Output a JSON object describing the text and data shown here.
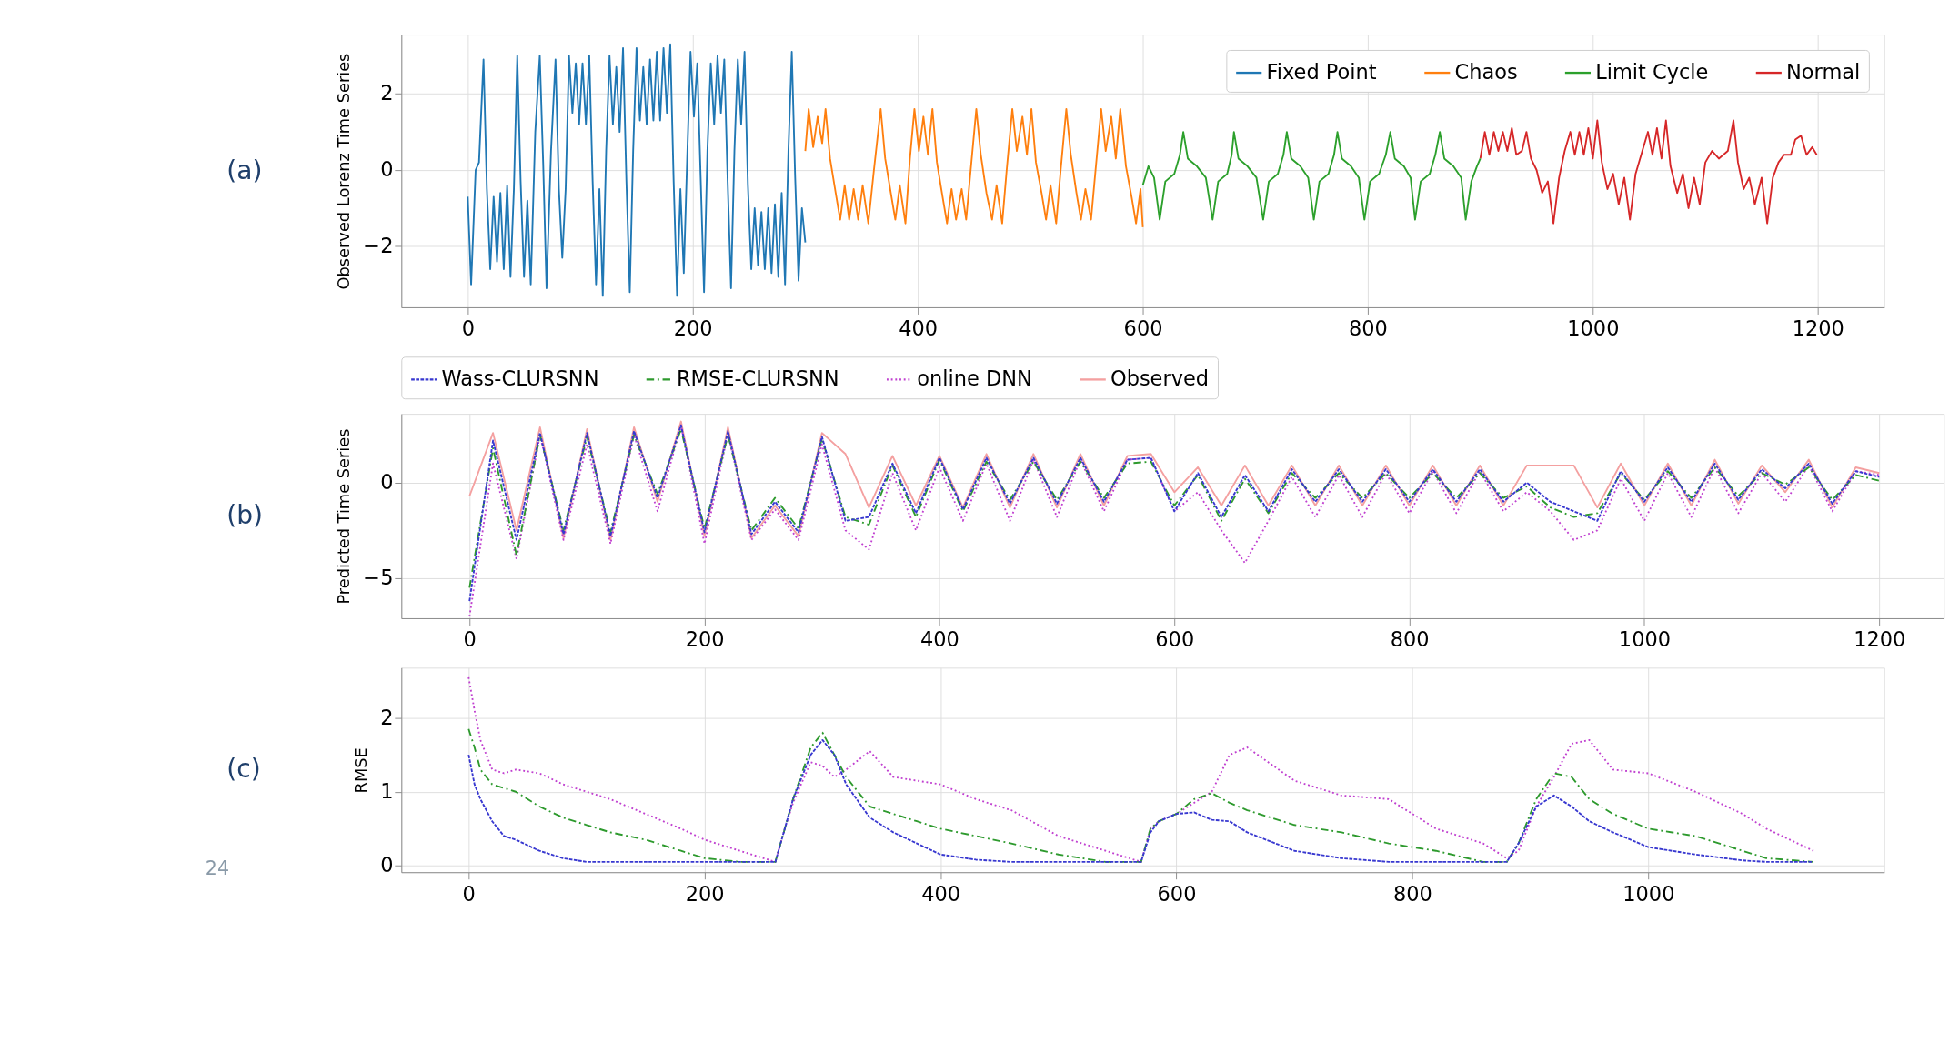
{
  "chart_data": [
    {
      "type": "line",
      "ylabel": "Observed Lorenz Time Series",
      "annotations": [
        "(a)"
      ],
      "xlim": [
        -59,
        1259
      ],
      "ylim": [
        -3.6,
        3.55
      ],
      "xticks": [
        0,
        200,
        400,
        600,
        800,
        1000,
        1200
      ],
      "yticks": [
        -2,
        0,
        2
      ],
      "grid": true,
      "legend": "top right",
      "line_style": "solid",
      "series": [
        {
          "name": "Fixed Point",
          "color": "#1f77b4",
          "x": [
            0,
            3,
            7,
            10,
            14,
            17,
            20,
            23,
            26,
            29,
            32,
            35,
            38,
            41,
            44,
            47,
            50,
            53,
            56,
            60,
            64,
            67,
            70,
            74,
            78,
            81,
            84,
            87,
            90,
            93,
            96,
            99,
            102,
            105,
            108,
            111,
            114,
            117,
            120,
            123,
            126,
            129,
            132,
            135,
            138,
            141,
            144,
            147,
            150,
            153,
            156,
            159,
            162,
            165,
            168,
            171,
            174,
            177,
            180,
            183,
            186,
            189,
            192,
            195,
            198,
            201,
            204,
            207,
            210,
            213,
            216,
            219,
            222,
            225,
            228,
            231,
            234,
            237,
            240,
            243,
            246,
            249,
            252,
            255,
            258,
            261,
            264,
            267,
            270,
            273,
            276,
            279,
            282,
            285,
            288,
            291,
            294,
            297,
            300
          ],
          "values": [
            -0.7,
            -3.0,
            0.0,
            0.2,
            2.9,
            -0.5,
            -2.6,
            -0.7,
            -2.4,
            -0.6,
            -2.6,
            -0.4,
            -2.8,
            -0.5,
            3.0,
            -0.3,
            -2.8,
            -0.8,
            -3.0,
            1.0,
            3.0,
            0.2,
            -3.1,
            0.5,
            2.9,
            -0.5,
            -2.3,
            -0.5,
            3.0,
            1.5,
            2.8,
            1.2,
            2.8,
            1.2,
            3.0,
            -0.3,
            -3.0,
            -0.5,
            -3.3,
            0.5,
            3.0,
            1.2,
            2.7,
            1.0,
            3.2,
            -0.3,
            -3.2,
            0.5,
            3.2,
            1.3,
            2.7,
            1.2,
            2.9,
            1.3,
            3.1,
            1.3,
            3.2,
            1.5,
            3.3,
            -0.3,
            -3.3,
            -0.5,
            -2.7,
            0.3,
            3.1,
            1.4,
            2.8,
            -0.2,
            -3.2,
            0.5,
            2.8,
            1.2,
            3.0,
            1.5,
            2.9,
            -0.3,
            -3.1,
            0.5,
            2.9,
            1.2,
            3.1,
            -0.4,
            -2.6,
            -1.0,
            -2.5,
            -1.1,
            -2.6,
            -1.0,
            -2.7,
            -0.9,
            -2.8,
            -0.6,
            -3.0,
            0.5,
            3.1,
            -0.2,
            -2.9,
            -1.0,
            -1.9
          ]
        },
        {
          "name": "Chaos",
          "color": "#ff7f0e",
          "x": [
            300,
            303,
            307,
            311,
            315,
            318,
            322,
            327,
            331,
            335,
            339,
            343,
            347,
            351,
            356,
            361,
            367,
            371,
            376,
            380,
            384,
            389,
            393,
            397,
            401,
            405,
            409,
            413,
            417,
            422,
            426,
            430,
            434,
            439,
            443,
            447,
            452,
            456,
            461,
            466,
            470,
            475,
            479,
            484,
            488,
            493,
            497,
            501,
            505,
            510,
            514,
            518,
            523,
            527,
            532,
            536,
            541,
            545,
            549,
            554,
            558,
            563,
            567,
            572,
            576,
            580,
            585,
            590,
            594,
            598,
            600
          ],
          "values": [
            0.5,
            1.6,
            0.6,
            1.4,
            0.7,
            1.6,
            0.3,
            -0.6,
            -1.3,
            -0.4,
            -1.3,
            -0.5,
            -1.3,
            -0.4,
            -1.4,
            0.0,
            1.6,
            0.3,
            -0.6,
            -1.3,
            -0.4,
            -1.4,
            0.3,
            1.6,
            0.5,
            1.4,
            0.4,
            1.6,
            0.2,
            -0.7,
            -1.4,
            -0.5,
            -1.3,
            -0.5,
            -1.3,
            0.0,
            1.6,
            0.4,
            -0.6,
            -1.3,
            -0.4,
            -1.4,
            0.0,
            1.6,
            0.5,
            1.4,
            0.4,
            1.6,
            0.2,
            -0.6,
            -1.3,
            -0.4,
            -1.4,
            0.0,
            1.6,
            0.4,
            -0.6,
            -1.3,
            -0.5,
            -1.3,
            0.0,
            1.6,
            0.5,
            1.4,
            0.3,
            1.6,
            0.1,
            -0.7,
            -1.4,
            -0.5,
            -1.5
          ]
        },
        {
          "name": "Limit Cycle",
          "color": "#2ca02c",
          "x": [
            600,
            605,
            610,
            615,
            620,
            628,
            633,
            636,
            640,
            648,
            656,
            662,
            667,
            675,
            679,
            681,
            685,
            693,
            701,
            707,
            712,
            720,
            725,
            728,
            732,
            740,
            747,
            752,
            757,
            765,
            770,
            773,
            777,
            785,
            792,
            797,
            802,
            810,
            816,
            820,
            824,
            832,
            838,
            842,
            847,
            855,
            860,
            864,
            868,
            876,
            883,
            887,
            892,
            897,
            900
          ],
          "values": [
            -0.4,
            0.1,
            -0.2,
            -1.3,
            -0.3,
            -0.1,
            0.4,
            1.0,
            0.3,
            0.1,
            -0.2,
            -1.3,
            -0.3,
            -0.1,
            0.4,
            1.0,
            0.3,
            0.1,
            -0.2,
            -1.3,
            -0.3,
            -0.1,
            0.4,
            1.0,
            0.3,
            0.1,
            -0.2,
            -1.3,
            -0.3,
            -0.1,
            0.4,
            1.0,
            0.3,
            0.1,
            -0.2,
            -1.3,
            -0.3,
            -0.1,
            0.4,
            1.0,
            0.3,
            0.1,
            -0.2,
            -1.3,
            -0.3,
            -0.1,
            0.4,
            1.0,
            0.3,
            0.1,
            -0.2,
            -1.3,
            -0.3,
            0.1,
            0.3
          ]
        },
        {
          "name": "Normal",
          "color": "#d62728",
          "x": [
            900,
            904,
            908,
            912,
            916,
            920,
            924,
            928,
            932,
            937,
            941,
            945,
            950,
            955,
            960,
            965,
            970,
            975,
            980,
            984,
            988,
            992,
            996,
            1000,
            1004,
            1008,
            1013,
            1018,
            1023,
            1028,
            1033,
            1038,
            1044,
            1049,
            1053,
            1057,
            1061,
            1065,
            1069,
            1075,
            1080,
            1085,
            1090,
            1095,
            1100,
            1106,
            1112,
            1120,
            1125,
            1129,
            1134,
            1139,
            1144,
            1150,
            1155,
            1160,
            1165,
            1170,
            1176,
            1180,
            1185,
            1190,
            1195,
            1199
          ],
          "values": [
            0.3,
            1.0,
            0.4,
            1.0,
            0.5,
            1.0,
            0.5,
            1.1,
            0.4,
            0.5,
            1.0,
            0.3,
            0.0,
            -0.6,
            -0.3,
            -1.4,
            -0.2,
            0.5,
            1.0,
            0.4,
            1.0,
            0.4,
            1.1,
            0.3,
            1.3,
            0.2,
            -0.5,
            -0.1,
            -0.9,
            -0.2,
            -1.3,
            -0.1,
            0.5,
            1.0,
            0.4,
            1.1,
            0.3,
            1.3,
            0.1,
            -0.6,
            -0.1,
            -1.0,
            -0.2,
            -0.9,
            0.2,
            0.5,
            0.3,
            0.5,
            1.3,
            0.2,
            -0.5,
            -0.2,
            -0.9,
            -0.2,
            -1.4,
            -0.2,
            0.2,
            0.4,
            0.4,
            0.8,
            0.9,
            0.4,
            0.6,
            0.4
          ]
        }
      ]
    },
    {
      "type": "line",
      "ylabel": "Predicted Time Series",
      "annotations": [
        "(b)"
      ],
      "xlim": [
        -58,
        1255
      ],
      "ylim": [
        -7.1,
        3.6
      ],
      "xticks": [
        0,
        200,
        400,
        600,
        800,
        1000,
        1200
      ],
      "yticks": [
        -5,
        0
      ],
      "grid": true,
      "legend": "top",
      "x": [
        0,
        20,
        40,
        60,
        80,
        100,
        120,
        140,
        160,
        180,
        200,
        220,
        240,
        260,
        280,
        300,
        320,
        340,
        360,
        380,
        400,
        420,
        440,
        460,
        480,
        500,
        520,
        540,
        560,
        580,
        600,
        620,
        640,
        660,
        680,
        700,
        720,
        740,
        760,
        780,
        800,
        820,
        840,
        860,
        880,
        900,
        920,
        940,
        960,
        980,
        1000,
        1020,
        1040,
        1060,
        1080,
        1100,
        1120,
        1140,
        1160,
        1180,
        1200
      ],
      "series": [
        {
          "name": "Wass-CLURSNN",
          "color": "#3838d0",
          "line_style": "dashed",
          "values": [
            -6.2,
            2.2,
            -3.0,
            2.6,
            -2.7,
            2.6,
            -2.8,
            2.7,
            -0.8,
            3.0,
            -2.6,
            2.7,
            -2.7,
            -1.0,
            -2.6,
            2.4,
            -2.0,
            -1.8,
            1.0,
            -1.6,
            1.3,
            -1.4,
            1.3,
            -1.1,
            1.3,
            -1.1,
            1.3,
            -1.0,
            1.2,
            1.3,
            -1.5,
            0.5,
            -1.8,
            0.4,
            -1.5,
            0.7,
            -1.0,
            0.7,
            -1.0,
            0.7,
            -1.0,
            0.7,
            -1.0,
            0.7,
            -1.0,
            0.0,
            -1.0,
            -1.5,
            -2.0,
            0.6,
            -1.0,
            0.8,
            -1.0,
            1.0,
            -0.9,
            0.7,
            -0.3,
            1.0,
            -1.1,
            0.6,
            0.3
          ]
        },
        {
          "name": "RMSE-CLURSNN",
          "color": "#2e9a2e",
          "line_style": "dashdot",
          "values": [
            -5.5,
            1.8,
            -3.8,
            2.5,
            -2.5,
            2.4,
            -2.6,
            2.5,
            -0.6,
            2.8,
            -2.4,
            2.5,
            -2.5,
            -0.8,
            -2.4,
            2.3,
            -1.8,
            -2.2,
            0.9,
            -1.8,
            1.2,
            -1.5,
            1.1,
            -0.9,
            1.1,
            -0.9,
            1.1,
            -0.8,
            1.0,
            1.1,
            -1.2,
            0.4,
            -2.0,
            0.2,
            -1.6,
            0.5,
            -0.8,
            0.5,
            -0.8,
            0.5,
            -0.8,
            0.5,
            -0.8,
            0.5,
            -0.8,
            -0.2,
            -1.3,
            -1.8,
            -1.6,
            0.5,
            -0.9,
            0.6,
            -0.8,
            0.8,
            -0.7,
            0.5,
            -0.1,
            0.8,
            -0.9,
            0.4,
            0.1
          ]
        },
        {
          "name": "online DNN",
          "color": "#c040d0",
          "line_style": "dotted",
          "values": [
            -7.0,
            1.0,
            -4.0,
            2.5,
            -3.0,
            2.0,
            -3.2,
            2.5,
            -1.5,
            3.0,
            -3.2,
            2.6,
            -3.0,
            -1.4,
            -3.0,
            2.0,
            -2.5,
            -3.5,
            0.5,
            -2.5,
            0.8,
            -2.0,
            1.0,
            -2.0,
            1.2,
            -1.8,
            1.2,
            -1.5,
            1.2,
            1.3,
            -1.5,
            -0.5,
            -2.5,
            -4.2,
            -2.0,
            0.3,
            -1.8,
            0.4,
            -1.8,
            0.5,
            -1.6,
            0.6,
            -1.6,
            0.6,
            -1.5,
            -0.5,
            -1.5,
            -3.0,
            -2.5,
            0.2,
            -2.0,
            0.5,
            -1.8,
            0.8,
            -1.6,
            0.5,
            -1.0,
            0.9,
            -1.5,
            0.6,
            0.4
          ]
        },
        {
          "name": "Observed",
          "color": "#f4a0a0",
          "line_style": "solid",
          "values": [
            -0.7,
            2.6,
            -2.5,
            2.9,
            -2.9,
            2.8,
            -3.0,
            2.9,
            -1.0,
            3.2,
            -2.8,
            2.9,
            -2.9,
            -1.2,
            -2.8,
            2.6,
            1.5,
            -1.3,
            1.4,
            -1.2,
            1.4,
            -1.3,
            1.5,
            -1.3,
            1.5,
            -1.3,
            1.5,
            -1.2,
            1.4,
            1.5,
            -0.5,
            0.8,
            -1.2,
            0.9,
            -1.2,
            0.9,
            -1.2,
            0.9,
            -1.2,
            0.9,
            -1.2,
            0.9,
            -1.2,
            0.9,
            -1.2,
            0.9,
            0.9,
            0.9,
            -1.3,
            1.0,
            -1.2,
            1.0,
            -1.2,
            1.2,
            -1.1,
            0.9,
            -0.5,
            1.2,
            -1.3,
            0.8,
            0.5
          ]
        }
      ]
    },
    {
      "type": "line",
      "ylabel": "RMSE",
      "annotations": [
        "(c)",
        "24"
      ],
      "xlim": [
        -57,
        1200
      ],
      "ylim": [
        -0.09,
        2.68
      ],
      "xticks": [
        0,
        200,
        400,
        600,
        800,
        1000
      ],
      "yticks": [
        0,
        1,
        2
      ],
      "grid": true,
      "x": [
        0,
        5,
        10,
        20,
        30,
        40,
        60,
        80,
        100,
        120,
        150,
        180,
        200,
        230,
        260,
        268,
        275,
        290,
        300,
        310,
        320,
        340,
        360,
        380,
        400,
        430,
        460,
        500,
        540,
        570,
        578,
        585,
        600,
        615,
        630,
        645,
        660,
        700,
        740,
        780,
        820,
        860,
        880,
        890,
        905,
        920,
        935,
        950,
        970,
        1000,
        1040,
        1080,
        1100,
        1140
      ],
      "series": [
        {
          "color": "#3838d0",
          "line_style": "dashed",
          "values": [
            1.5,
            1.1,
            0.9,
            0.6,
            0.4,
            0.35,
            0.2,
            0.1,
            0.05,
            0.05,
            0.05,
            0.05,
            0.05,
            0.05,
            0.05,
            0.5,
            0.9,
            1.5,
            1.7,
            1.5,
            1.1,
            0.65,
            0.45,
            0.3,
            0.15,
            0.08,
            0.05,
            0.05,
            0.05,
            0.05,
            0.45,
            0.6,
            0.7,
            0.72,
            0.62,
            0.6,
            0.45,
            0.2,
            0.1,
            0.05,
            0.05,
            0.05,
            0.05,
            0.3,
            0.8,
            0.95,
            0.8,
            0.6,
            0.45,
            0.25,
            0.15,
            0.07,
            0.05,
            0.05
          ]
        },
        {
          "color": "#2e9a2e",
          "line_style": "dashdot",
          "values": [
            1.85,
            1.6,
            1.3,
            1.1,
            1.05,
            1.0,
            0.8,
            0.65,
            0.55,
            0.45,
            0.35,
            0.2,
            0.1,
            0.05,
            0.05,
            0.5,
            0.9,
            1.6,
            1.8,
            1.5,
            1.2,
            0.8,
            0.7,
            0.6,
            0.5,
            0.4,
            0.3,
            0.15,
            0.05,
            0.05,
            0.5,
            0.6,
            0.7,
            0.9,
            0.98,
            0.85,
            0.75,
            0.55,
            0.45,
            0.3,
            0.2,
            0.05,
            0.05,
            0.3,
            0.9,
            1.25,
            1.2,
            0.9,
            0.7,
            0.5,
            0.4,
            0.2,
            0.1,
            0.05
          ]
        },
        {
          "color": "#c040d0",
          "line_style": "dotted",
          "values": [
            2.55,
            2.1,
            1.7,
            1.3,
            1.25,
            1.3,
            1.25,
            1.1,
            1.0,
            0.9,
            0.7,
            0.5,
            0.35,
            0.2,
            0.05,
            0.5,
            0.85,
            1.4,
            1.35,
            1.2,
            1.3,
            1.55,
            1.2,
            1.15,
            1.1,
            0.9,
            0.75,
            0.4,
            0.2,
            0.05,
            0.5,
            0.6,
            0.7,
            0.85,
            1.0,
            1.5,
            1.6,
            1.15,
            0.95,
            0.9,
            0.5,
            0.3,
            0.1,
            0.2,
            0.8,
            1.2,
            1.65,
            1.7,
            1.3,
            1.25,
            1.0,
            0.7,
            0.5,
            0.2
          ]
        }
      ]
    }
  ]
}
